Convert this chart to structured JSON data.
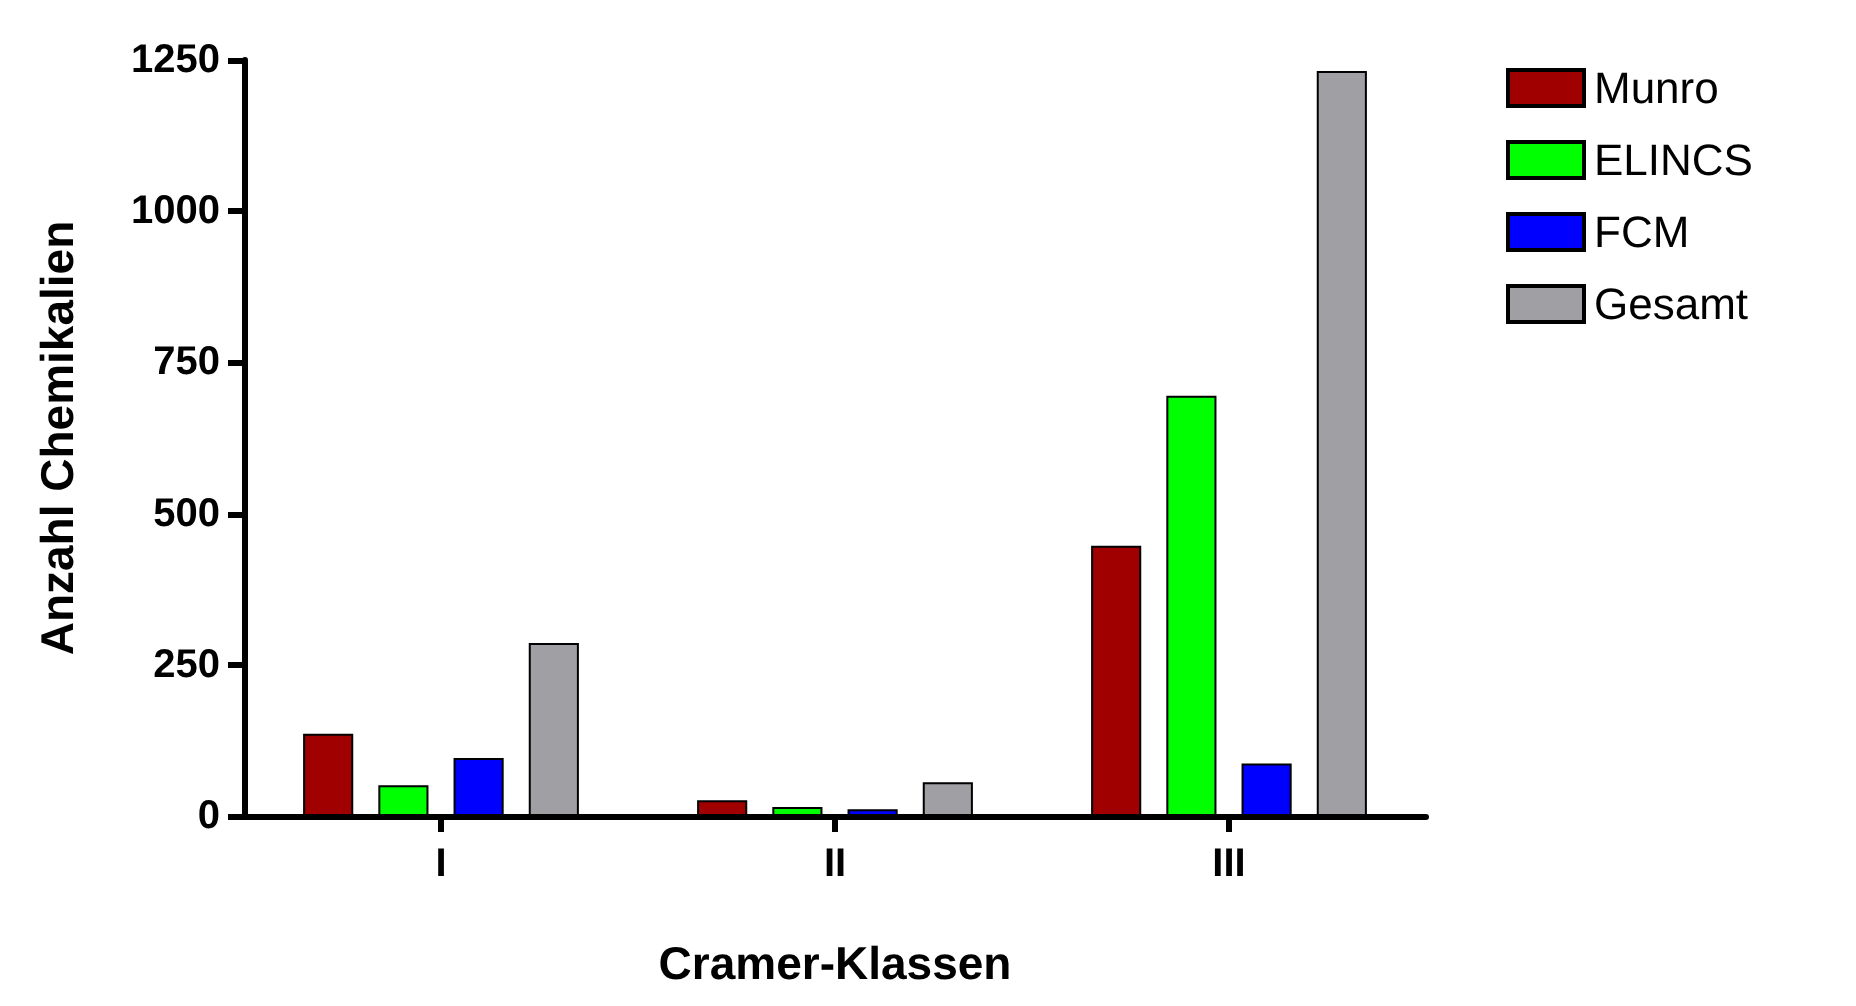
{
  "chart_data": {
    "type": "bar",
    "xlabel": "Cramer-Klassen",
    "ylabel": "Anzahl Chemikalien",
    "categories": [
      "I",
      "II",
      "III"
    ],
    "series": [
      {
        "name": "Munro",
        "color": "#a00000",
        "values": [
          136,
          26,
          447
        ]
      },
      {
        "name": "ELINCS",
        "color": "#00ff00",
        "values": [
          51,
          15,
          695
        ]
      },
      {
        "name": "FCM",
        "color": "#0000ff",
        "values": [
          96,
          11,
          87
        ]
      },
      {
        "name": "Gesamt",
        "color": "#a0a0a4",
        "values": [
          286,
          56,
          1232
        ]
      }
    ],
    "ylim": [
      0,
      1250
    ],
    "yticks": [
      0,
      250,
      500,
      750,
      1000,
      1250
    ],
    "grid": false,
    "legend": "right"
  }
}
